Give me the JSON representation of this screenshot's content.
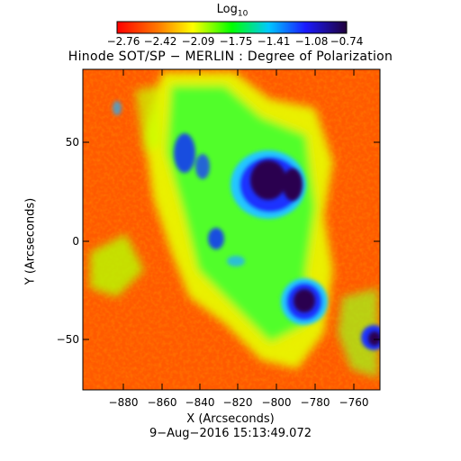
{
  "colorbar": {
    "title": "Log",
    "title_sub": "10",
    "ticks": [
      "−2.76",
      "−2.42",
      "−2.09",
      "−1.75",
      "−1.41",
      "−1.08",
      "−0.74"
    ]
  },
  "title": "Hinode SOT/SP − MERLIN : Degree of Polarization",
  "axes": {
    "xlabel": "X (Arcseconds)",
    "ylabel": "Y (Arcseconds)",
    "xticks": [
      "−880",
      "−860",
      "−840",
      "−820",
      "−800",
      "−780",
      "−760"
    ],
    "yticks": [
      "50",
      "0",
      "−50"
    ]
  },
  "date": "9−Aug−2016 15:13:49.072",
  "colors": {
    "background": "#ffffff",
    "colormap": [
      "#ff0000",
      "#ff7a00",
      "#ffff00",
      "#00ff00",
      "#00c0ff",
      "#1a1aff",
      "#20003a"
    ]
  }
}
